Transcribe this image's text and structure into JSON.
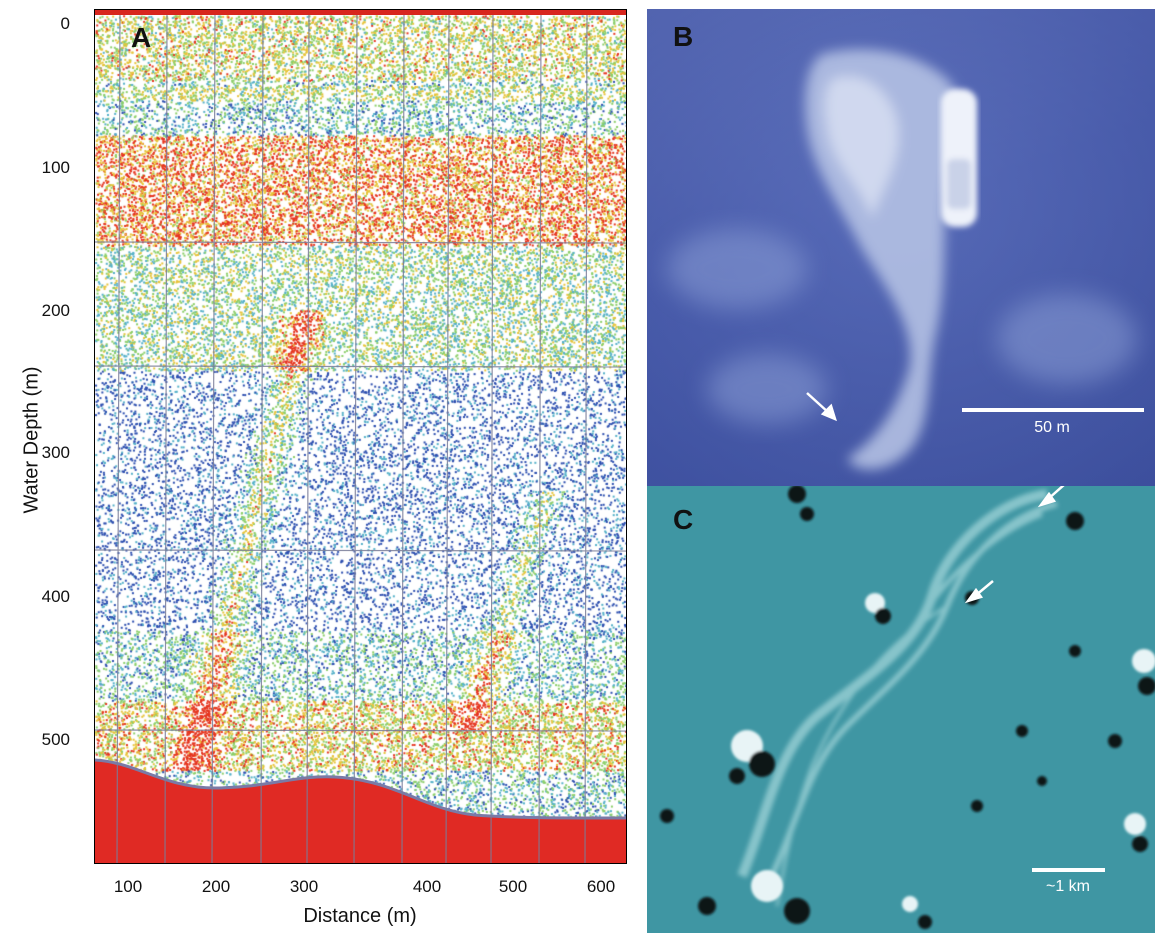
{
  "panels": {
    "a": {
      "letter": "A"
    },
    "b": {
      "letter": "B",
      "scale_label": "50 m"
    },
    "c": {
      "letter": "C",
      "scale_label": "~1 km"
    }
  },
  "axes": {
    "y_title": "Water Depth (m)",
    "x_title": "Distance (m)",
    "y_ticks": [
      "0",
      "100",
      "200",
      "300",
      "400",
      "500"
    ],
    "x_ticks": [
      "100",
      "200",
      "300",
      "400",
      "500",
      "600"
    ]
  },
  "colors": {
    "seafloor": "#e02a24",
    "strong_backscatter": "#e6351f",
    "medium_backscatter": "#e7c43a",
    "weak_backscatter": "#55b1c9",
    "sparse_backscatter": "#2d4fb0",
    "photo_water": "#4b5fb0",
    "satellite_water": "#3f96a3"
  }
}
